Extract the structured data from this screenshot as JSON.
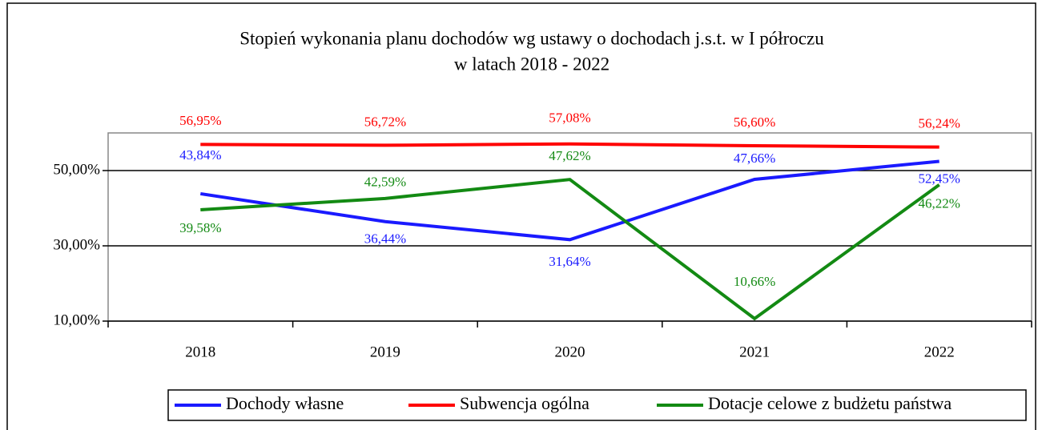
{
  "chart_data": {
    "type": "line",
    "title": [
      "Stopień wykonania planu dochodów wg ustawy o dochodach j.s.t. w I półroczu",
      "w latach 2018 - 2022"
    ],
    "categories": [
      "2018",
      "2019",
      "2020",
      "2021",
      "2022"
    ],
    "series": [
      {
        "name": "Dochody własne",
        "color": "#1a1aff",
        "values": [
          43.84,
          36.44,
          31.64,
          47.66,
          52.45
        ],
        "value_labels": [
          "43,84%",
          "36,44%",
          "31,64%",
          "47,66%",
          "52,45%"
        ]
      },
      {
        "name": "Subwencja ogólna",
        "color": "#ff0000",
        "values": [
          56.95,
          56.72,
          57.08,
          56.6,
          56.24
        ],
        "value_labels": [
          "56,95%",
          "56,72%",
          "57,08%",
          "56,60%",
          "56,24%"
        ]
      },
      {
        "name": "Dotacje celowe z budżetu państwa",
        "color": "#138a13",
        "values": [
          39.58,
          42.59,
          47.62,
          10.66,
          46.22
        ],
        "value_labels": [
          "39,58%",
          "42,59%",
          "47,62%",
          "10,66%",
          "46,22%"
        ]
      }
    ],
    "ylim": [
      10,
      60
    ],
    "yticks": [
      {
        "value": 10,
        "label": "10,00%"
      },
      {
        "value": 30,
        "label": "30,00%"
      },
      {
        "value": 50,
        "label": "50,00%"
      }
    ],
    "grid": true,
    "legend": "bottom"
  }
}
